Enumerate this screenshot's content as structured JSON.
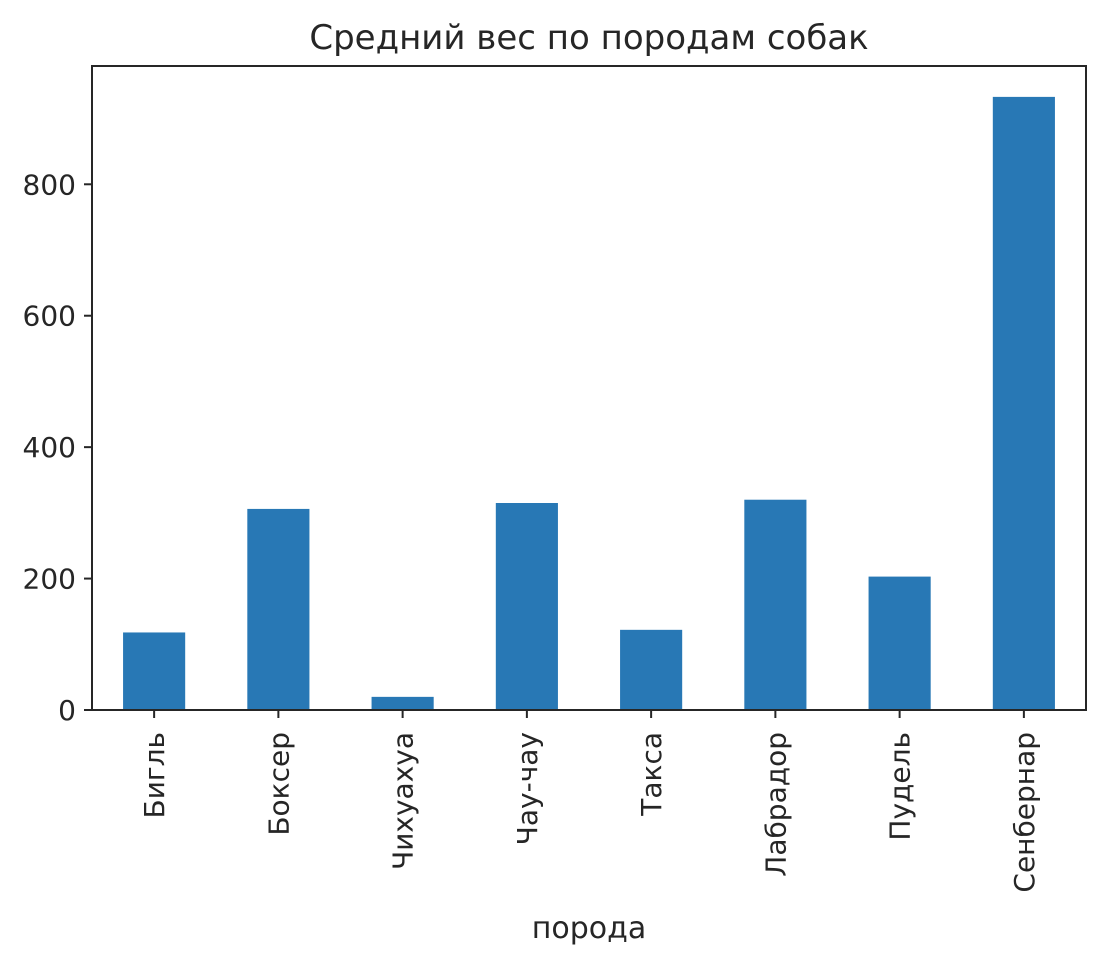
{
  "chart_data": {
    "type": "bar",
    "title": "Средний вес по породам собак",
    "xlabel": "порода",
    "ylabel": "",
    "categories": [
      "Бигль",
      "Боксер",
      "Чихуахуа",
      "Чау-чау",
      "Такса",
      "Лабрадор",
      "Пудель",
      "Сенбернар"
    ],
    "values": [
      118,
      306,
      20,
      315,
      122,
      320,
      203,
      933
    ],
    "ylim": [
      0,
      980
    ],
    "yticks": [
      0,
      200,
      400,
      600,
      800
    ],
    "bar_color": "#2878b5",
    "grid": false,
    "legend": "none"
  }
}
